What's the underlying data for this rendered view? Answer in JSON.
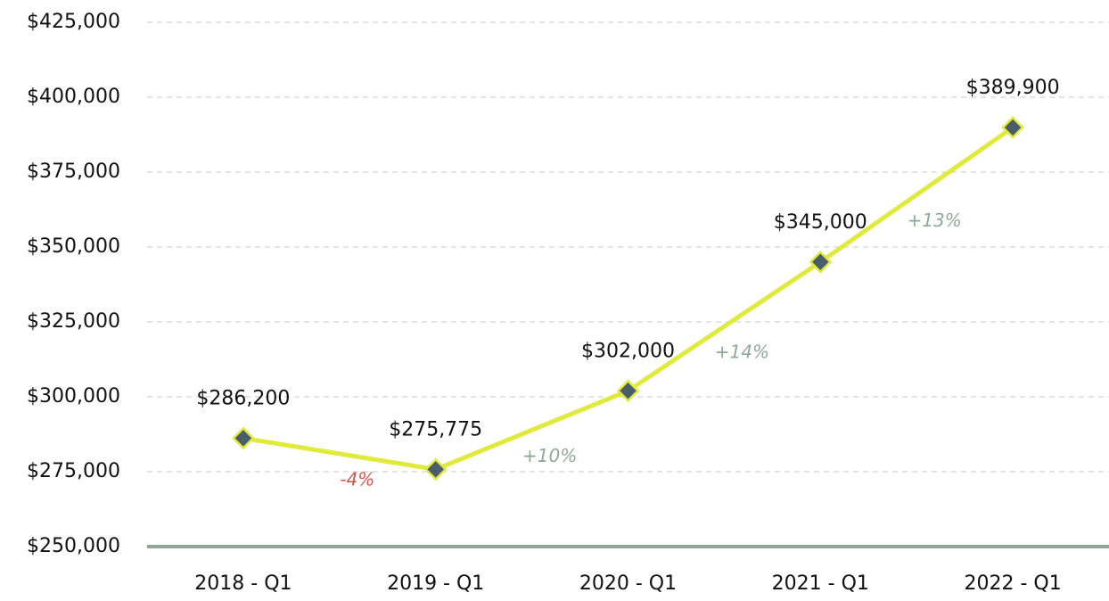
{
  "chart_data": {
    "type": "line",
    "categories": [
      "2018 - Q1",
      "2019 - Q1",
      "2020 - Q1",
      "2021 - Q1",
      "2022 - Q1"
    ],
    "series": [
      {
        "color": "#e0ea3c",
        "marker_color": "#4a5d6b",
        "values": [
          286200,
          275775,
          302000,
          345000,
          389900
        ],
        "value_labels": [
          "$286,200",
          "$275,775",
          "$302,000",
          "$345,000",
          "$389,900"
        ]
      }
    ],
    "ylim": [
      250000,
      425000
    ],
    "yticks": [
      {
        "value": 250000,
        "label": "$250,000"
      },
      {
        "value": 275000,
        "label": "$275,000"
      },
      {
        "value": 300000,
        "label": "$300,000"
      },
      {
        "value": 325000,
        "label": "$325,000"
      },
      {
        "value": 350000,
        "label": "$350,000"
      },
      {
        "value": 375000,
        "label": "$375,000"
      },
      {
        "value": 400000,
        "label": "$400,000"
      },
      {
        "value": 425000,
        "label": "$425,000"
      }
    ],
    "grid": true,
    "annotations": [
      {
        "text": "-4%",
        "color": "#d9534f"
      },
      {
        "text": "+10%",
        "color": "#8fa89a"
      },
      {
        "text": "+14%",
        "color": "#8fa89a"
      },
      {
        "text": "+13%",
        "color": "#8fa89a"
      }
    ]
  }
}
